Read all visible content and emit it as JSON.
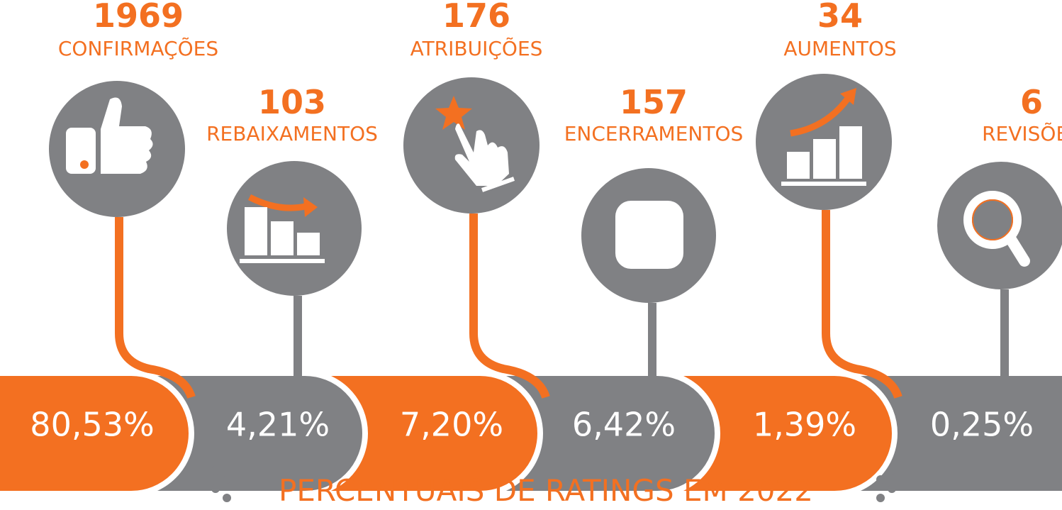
{
  "title": "PERCENTUAIS DE RATINGS EM 2022",
  "items": [
    {
      "count": "1969",
      "label": "CONFIRMAÇÕES",
      "percent": "80,53%"
    },
    {
      "count": "103",
      "label": "REBAIXAMENTOS",
      "percent": "4,21%"
    },
    {
      "count": "176",
      "label": "ATRIBUIÇÕES",
      "percent": "7,20%"
    },
    {
      "count": "157",
      "label": "ENCERRAMENTOS",
      "percent": "6,42%"
    },
    {
      "count": "34",
      "label": "AUMENTOS",
      "percent": "1,39%"
    },
    {
      "count": "6",
      "label": "REVISÕES",
      "percent": "0,25%"
    }
  ]
}
